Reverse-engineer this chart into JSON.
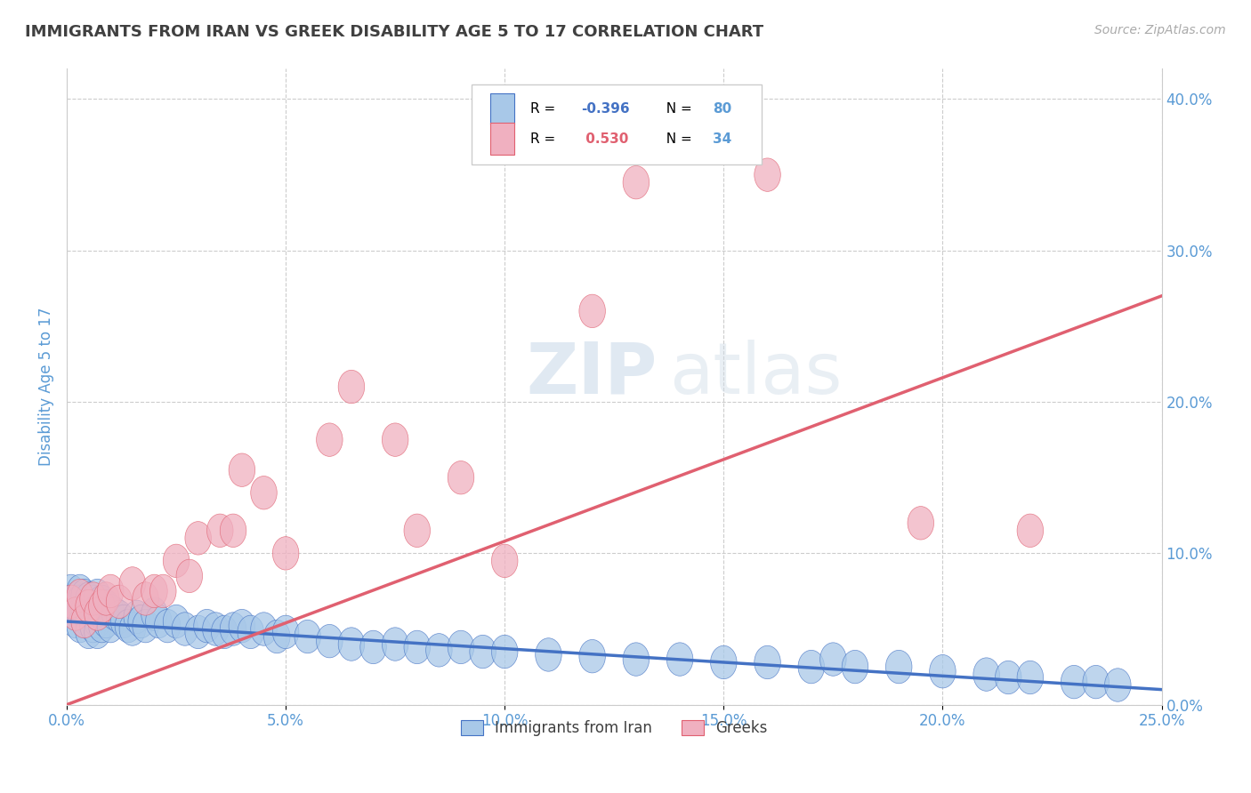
{
  "title": "IMMIGRANTS FROM IRAN VS GREEK DISABILITY AGE 5 TO 17 CORRELATION CHART",
  "source": "Source: ZipAtlas.com",
  "ylabel": "Disability Age 5 to 17",
  "watermark_zip": "ZIP",
  "watermark_atlas": "atlas",
  "legend_label1": "Immigrants from Iran",
  "legend_label2": "Greeks",
  "R1": -0.396,
  "N1": 80,
  "R2": 0.53,
  "N2": 34,
  "color1": "#a8c8e8",
  "color2": "#f0b0c0",
  "trendline1_color": "#4472c4",
  "trendline2_color": "#e06070",
  "xlim": [
    0.0,
    0.25
  ],
  "ylim": [
    0.0,
    0.42
  ],
  "xticks": [
    0.0,
    0.05,
    0.1,
    0.15,
    0.2,
    0.25
  ],
  "yticks_right": [
    0.0,
    0.1,
    0.2,
    0.3,
    0.4
  ],
  "background_color": "#ffffff",
  "grid_color": "#cccccc",
  "title_color": "#404040",
  "tick_color": "#5b9bd5",
  "trendline1_x": [
    0.0,
    0.25
  ],
  "trendline1_y": [
    0.055,
    0.01
  ],
  "trendline2_x": [
    0.0,
    0.25
  ],
  "trendline2_y": [
    0.0,
    0.27
  ],
  "scatter1_x": [
    0.001,
    0.001,
    0.002,
    0.002,
    0.002,
    0.003,
    0.003,
    0.003,
    0.003,
    0.004,
    0.004,
    0.004,
    0.005,
    0.005,
    0.005,
    0.005,
    0.006,
    0.006,
    0.006,
    0.007,
    0.007,
    0.007,
    0.007,
    0.008,
    0.008,
    0.008,
    0.009,
    0.009,
    0.01,
    0.01,
    0.011,
    0.012,
    0.013,
    0.014,
    0.015,
    0.016,
    0.017,
    0.018,
    0.02,
    0.021,
    0.023,
    0.025,
    0.027,
    0.03,
    0.032,
    0.034,
    0.036,
    0.038,
    0.04,
    0.042,
    0.045,
    0.048,
    0.05,
    0.055,
    0.06,
    0.065,
    0.07,
    0.075,
    0.08,
    0.085,
    0.09,
    0.095,
    0.1,
    0.11,
    0.12,
    0.13,
    0.14,
    0.15,
    0.16,
    0.17,
    0.175,
    0.18,
    0.19,
    0.2,
    0.21,
    0.215,
    0.22,
    0.23,
    0.235,
    0.24
  ],
  "scatter1_y": [
    0.075,
    0.065,
    0.07,
    0.06,
    0.055,
    0.075,
    0.068,
    0.06,
    0.052,
    0.072,
    0.063,
    0.055,
    0.07,
    0.063,
    0.055,
    0.048,
    0.068,
    0.06,
    0.052,
    0.072,
    0.063,
    0.055,
    0.048,
    0.068,
    0.06,
    0.052,
    0.065,
    0.055,
    0.062,
    0.052,
    0.06,
    0.058,
    0.055,
    0.052,
    0.05,
    0.058,
    0.055,
    0.052,
    0.06,
    0.055,
    0.052,
    0.055,
    0.05,
    0.048,
    0.052,
    0.05,
    0.048,
    0.05,
    0.052,
    0.048,
    0.05,
    0.045,
    0.048,
    0.045,
    0.042,
    0.04,
    0.038,
    0.04,
    0.038,
    0.036,
    0.038,
    0.035,
    0.035,
    0.033,
    0.032,
    0.03,
    0.03,
    0.028,
    0.028,
    0.025,
    0.03,
    0.025,
    0.025,
    0.022,
    0.02,
    0.018,
    0.018,
    0.015,
    0.015,
    0.013
  ],
  "scatter2_x": [
    0.001,
    0.002,
    0.003,
    0.004,
    0.005,
    0.006,
    0.007,
    0.008,
    0.009,
    0.01,
    0.012,
    0.015,
    0.018,
    0.02,
    0.022,
    0.025,
    0.028,
    0.03,
    0.035,
    0.038,
    0.04,
    0.045,
    0.05,
    0.06,
    0.065,
    0.075,
    0.08,
    0.09,
    0.1,
    0.12,
    0.13,
    0.16,
    0.195,
    0.22
  ],
  "scatter2_y": [
    0.068,
    0.06,
    0.072,
    0.055,
    0.065,
    0.07,
    0.06,
    0.065,
    0.07,
    0.075,
    0.068,
    0.08,
    0.07,
    0.075,
    0.075,
    0.095,
    0.085,
    0.11,
    0.115,
    0.115,
    0.155,
    0.14,
    0.1,
    0.175,
    0.21,
    0.175,
    0.115,
    0.15,
    0.095,
    0.26,
    0.345,
    0.35,
    0.12,
    0.115
  ]
}
